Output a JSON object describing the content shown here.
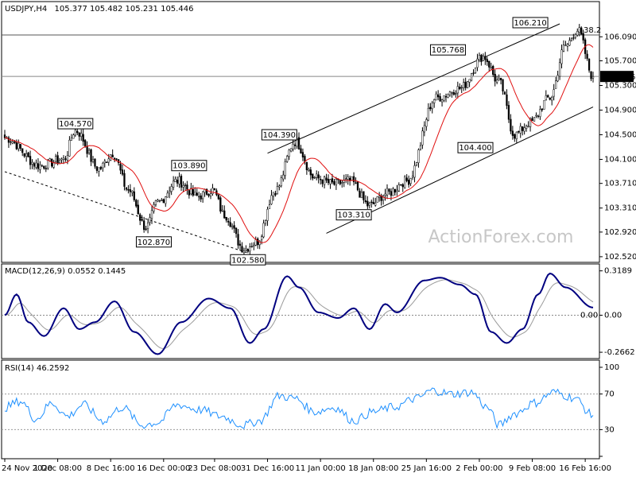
{
  "header": {
    "symbol": "USDJPY,H4",
    "ohlc": "105.377 105.482 105.231 105.446"
  },
  "watermark": "ActionForex.com",
  "colors": {
    "candle": "#000000",
    "ma": "#e01010",
    "macd": "#000080",
    "signal": "#9a9a9a",
    "rsi": "#1e90ff",
    "price_box_bg": "#000000",
    "label_bg": "#ffffff",
    "label_border": "#000000",
    "label_text": "#000080"
  },
  "chart_data": [
    {
      "type": "candlestick",
      "title": "USDJPY,H4",
      "x_tick_labels": [
        "24 Nov 2020",
        "1 Dec 08:00",
        "8 Dec 16:00",
        "16 Dec 00:00",
        "23 Dec 08:00",
        "31 Dec 16:00",
        "11 Jan 00:00",
        "18 Jan 08:00",
        "25 Jan 16:00",
        "2 Feb 00:00",
        "9 Feb 08:00",
        "16 Feb 16:00"
      ],
      "y_tick_labels": [
        "106.090",
        "105.700",
        "105.300",
        "104.900",
        "104.500",
        "104.100",
        "103.710",
        "103.310",
        "102.920",
        "102.520"
      ],
      "ylim": [
        102.48,
        106.3
      ],
      "current_price": "105.446",
      "fib_label": "38.2",
      "fib_level": 106.12,
      "last_close_line": 105.446,
      "price_keypoints": [
        {
          "i": 0,
          "v": 104.45
        },
        {
          "i": 18,
          "v": 104.0
        },
        {
          "i": 30,
          "v": 104.1
        },
        {
          "i": 36,
          "v": 104.57
        },
        {
          "i": 48,
          "v": 103.95
        },
        {
          "i": 55,
          "v": 104.2
        },
        {
          "i": 63,
          "v": 103.6
        },
        {
          "i": 72,
          "v": 103.0
        },
        {
          "i": 78,
          "v": 103.4
        },
        {
          "i": 88,
          "v": 103.75
        },
        {
          "i": 98,
          "v": 103.5
        },
        {
          "i": 106,
          "v": 103.6
        },
        {
          "i": 112,
          "v": 103.2
        },
        {
          "i": 122,
          "v": 102.65
        },
        {
          "i": 128,
          "v": 102.75
        },
        {
          "i": 138,
          "v": 103.6
        },
        {
          "i": 148,
          "v": 104.39
        },
        {
          "i": 158,
          "v": 103.8
        },
        {
          "i": 168,
          "v": 103.7
        },
        {
          "i": 176,
          "v": 103.75
        },
        {
          "i": 186,
          "v": 103.35
        },
        {
          "i": 195,
          "v": 103.55
        },
        {
          "i": 205,
          "v": 103.75
        },
        {
          "i": 220,
          "v": 105.1
        },
        {
          "i": 232,
          "v": 105.25
        },
        {
          "i": 244,
          "v": 105.77
        },
        {
          "i": 252,
          "v": 105.35
        },
        {
          "i": 260,
          "v": 104.5
        },
        {
          "i": 268,
          "v": 104.7
        },
        {
          "i": 278,
          "v": 105.1
        },
        {
          "i": 286,
          "v": 105.95
        },
        {
          "i": 292,
          "v": 106.2
        },
        {
          "i": 300,
          "v": 105.446
        }
      ],
      "candle_count": 301,
      "annotations": [
        {
          "label": "104.570",
          "i": 36,
          "v": 104.57,
          "pos": "above"
        },
        {
          "label": "102.870",
          "i": 76,
          "v": 102.87,
          "pos": "below"
        },
        {
          "label": "103.890",
          "i": 94,
          "v": 103.89,
          "pos": "above"
        },
        {
          "label": "102.580",
          "i": 124,
          "v": 102.58,
          "pos": "below"
        },
        {
          "label": "104.390",
          "i": 140,
          "v": 104.39,
          "pos": "above"
        },
        {
          "label": "103.310",
          "i": 178,
          "v": 103.31,
          "pos": "below"
        },
        {
          "label": "105.768",
          "i": 226,
          "v": 105.768,
          "pos": "above"
        },
        {
          "label": "104.400",
          "i": 240,
          "v": 104.4,
          "pos": "below"
        },
        {
          "label": "106.210",
          "i": 268,
          "v": 106.21,
          "pos": "above"
        }
      ],
      "trendlines": [
        {
          "style": "dashed",
          "from": {
            "i": 0,
            "v": 103.9
          },
          "to": {
            "i": 124,
            "v": 102.58
          }
        },
        {
          "style": "solid",
          "from": {
            "i": 134,
            "v": 104.2
          },
          "to": {
            "i": 283,
            "v": 106.3
          }
        },
        {
          "style": "solid",
          "from": {
            "i": 164,
            "v": 102.9
          },
          "to": {
            "i": 300,
            "v": 104.95
          }
        }
      ]
    },
    {
      "type": "line",
      "title": "MACD(12,26,9) 0.0552 0.1445",
      "y_tick_labels": [
        "0.3189",
        "0.00",
        "-0.2662"
      ],
      "ylim": [
        -0.3,
        0.34
      ],
      "zero_label": "0.00",
      "macd_keypoints": [
        {
          "i": 0,
          "v": 0.0
        },
        {
          "i": 6,
          "v": 0.15
        },
        {
          "i": 12,
          "v": -0.05
        },
        {
          "i": 20,
          "v": -0.15
        },
        {
          "i": 30,
          "v": 0.05
        },
        {
          "i": 38,
          "v": -0.1
        },
        {
          "i": 46,
          "v": -0.05
        },
        {
          "i": 56,
          "v": 0.1
        },
        {
          "i": 66,
          "v": -0.12
        },
        {
          "i": 78,
          "v": -0.28
        },
        {
          "i": 90,
          "v": -0.05
        },
        {
          "i": 104,
          "v": 0.12
        },
        {
          "i": 115,
          "v": 0.05
        },
        {
          "i": 125,
          "v": -0.2
        },
        {
          "i": 132,
          "v": -0.1
        },
        {
          "i": 144,
          "v": 0.28
        },
        {
          "i": 150,
          "v": 0.2
        },
        {
          "i": 160,
          "v": 0.02
        },
        {
          "i": 170,
          "v": -0.02
        },
        {
          "i": 178,
          "v": 0.05
        },
        {
          "i": 186,
          "v": -0.1
        },
        {
          "i": 194,
          "v": 0.08
        },
        {
          "i": 200,
          "v": 0.02
        },
        {
          "i": 214,
          "v": 0.25
        },
        {
          "i": 222,
          "v": 0.27
        },
        {
          "i": 232,
          "v": 0.22
        },
        {
          "i": 240,
          "v": 0.15
        },
        {
          "i": 248,
          "v": -0.12
        },
        {
          "i": 256,
          "v": -0.2
        },
        {
          "i": 264,
          "v": -0.1
        },
        {
          "i": 272,
          "v": 0.15
        },
        {
          "i": 278,
          "v": 0.3
        },
        {
          "i": 286,
          "v": 0.2
        },
        {
          "i": 300,
          "v": 0.0552
        }
      ]
    },
    {
      "type": "line",
      "title": "RSI(14) 46.2592",
      "y_tick_labels": [
        "100",
        "70",
        "30",
        "0"
      ],
      "ylim": [
        0,
        100
      ],
      "levels": [
        70,
        30
      ],
      "rsi_keypoints": [
        {
          "i": 0,
          "v": 55
        },
        {
          "i": 8,
          "v": 62
        },
        {
          "i": 16,
          "v": 42
        },
        {
          "i": 24,
          "v": 60
        },
        {
          "i": 32,
          "v": 45
        },
        {
          "i": 40,
          "v": 58
        },
        {
          "i": 50,
          "v": 40
        },
        {
          "i": 60,
          "v": 55
        },
        {
          "i": 70,
          "v": 35
        },
        {
          "i": 78,
          "v": 38
        },
        {
          "i": 88,
          "v": 58
        },
        {
          "i": 100,
          "v": 52
        },
        {
          "i": 110,
          "v": 45
        },
        {
          "i": 122,
          "v": 35
        },
        {
          "i": 130,
          "v": 40
        },
        {
          "i": 140,
          "v": 68
        },
        {
          "i": 148,
          "v": 65
        },
        {
          "i": 158,
          "v": 50
        },
        {
          "i": 168,
          "v": 55
        },
        {
          "i": 178,
          "v": 40
        },
        {
          "i": 188,
          "v": 50
        },
        {
          "i": 198,
          "v": 55
        },
        {
          "i": 210,
          "v": 65
        },
        {
          "i": 218,
          "v": 74
        },
        {
          "i": 228,
          "v": 70
        },
        {
          "i": 238,
          "v": 72
        },
        {
          "i": 246,
          "v": 55
        },
        {
          "i": 252,
          "v": 35
        },
        {
          "i": 260,
          "v": 48
        },
        {
          "i": 270,
          "v": 60
        },
        {
          "i": 280,
          "v": 72
        },
        {
          "i": 290,
          "v": 66
        },
        {
          "i": 300,
          "v": 46
        }
      ]
    }
  ]
}
